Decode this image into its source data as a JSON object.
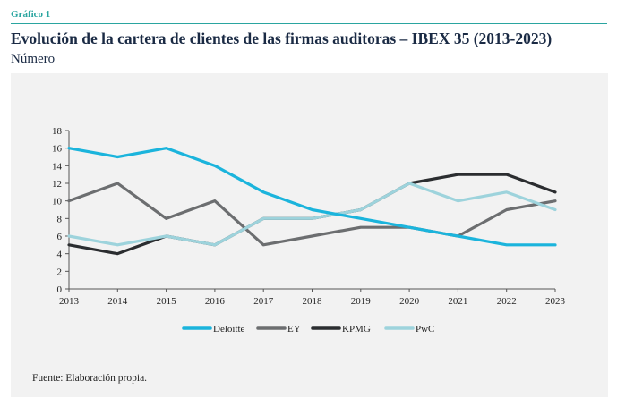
{
  "header": {
    "label": "Gráfico 1",
    "title": "Evolución de la cartera de clientes de las firmas auditoras – IBEX 35 (2013-2023)",
    "subtitle": "Número"
  },
  "source": "Fuente: Elaboración propia.",
  "chart_data": {
    "type": "line",
    "x": [
      "2013",
      "2014",
      "2015",
      "2016",
      "2017",
      "2018",
      "2019",
      "2020",
      "2021",
      "2022",
      "2023"
    ],
    "ylim": [
      0,
      18
    ],
    "yticks": [
      0,
      2,
      4,
      6,
      8,
      10,
      12,
      14,
      16,
      18
    ],
    "grid": false,
    "legend_position": "bottom",
    "series": [
      {
        "name": "Deloitte",
        "color": "#1bb4dc",
        "values": [
          16,
          15,
          16,
          14,
          11,
          9,
          8,
          7,
          6,
          5,
          5
        ]
      },
      {
        "name": "EY",
        "color": "#6c6e70",
        "values": [
          10,
          12,
          8,
          10,
          5,
          6,
          7,
          7,
          6,
          9,
          10
        ]
      },
      {
        "name": "KPMG",
        "color": "#2b2d30",
        "values": [
          5,
          4,
          6,
          5,
          8,
          8,
          9,
          12,
          13,
          13,
          11
        ]
      },
      {
        "name": "PwC",
        "color": "#9dd3dc",
        "values": [
          6,
          5,
          6,
          5,
          8,
          8,
          9,
          12,
          10,
          11,
          9
        ]
      }
    ]
  }
}
